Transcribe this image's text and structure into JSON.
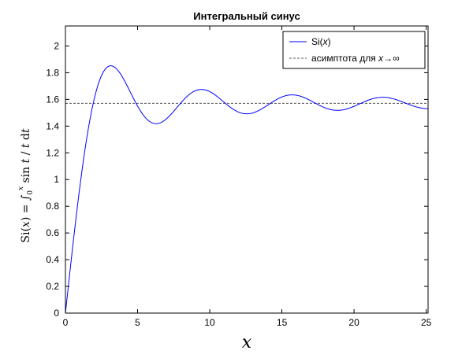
{
  "chart_data": {
    "type": "line",
    "title": "Интегральный синус",
    "xlabel": "x",
    "ylabel": "Si(x) = ∫₀ˣ (sin t / t) dt",
    "xlim": [
      0,
      25.13
    ],
    "ylim": [
      0,
      2.15
    ],
    "xticks": [
      0,
      5,
      10,
      15,
      20,
      25
    ],
    "yticks": [
      0,
      0.2,
      0.4,
      0.6,
      0.8,
      1,
      1.2,
      1.4,
      1.6,
      1.8,
      2
    ],
    "grid": false,
    "legend_position": "top-right",
    "series": [
      {
        "name": "Si(x)",
        "style": "solid",
        "color": "#0000ff",
        "function": "Si"
      },
      {
        "name": "асимптота для x→∞",
        "style": "dashed",
        "color": "#555555",
        "values": [
          1.5708,
          1.5708
        ]
      }
    ]
  }
}
